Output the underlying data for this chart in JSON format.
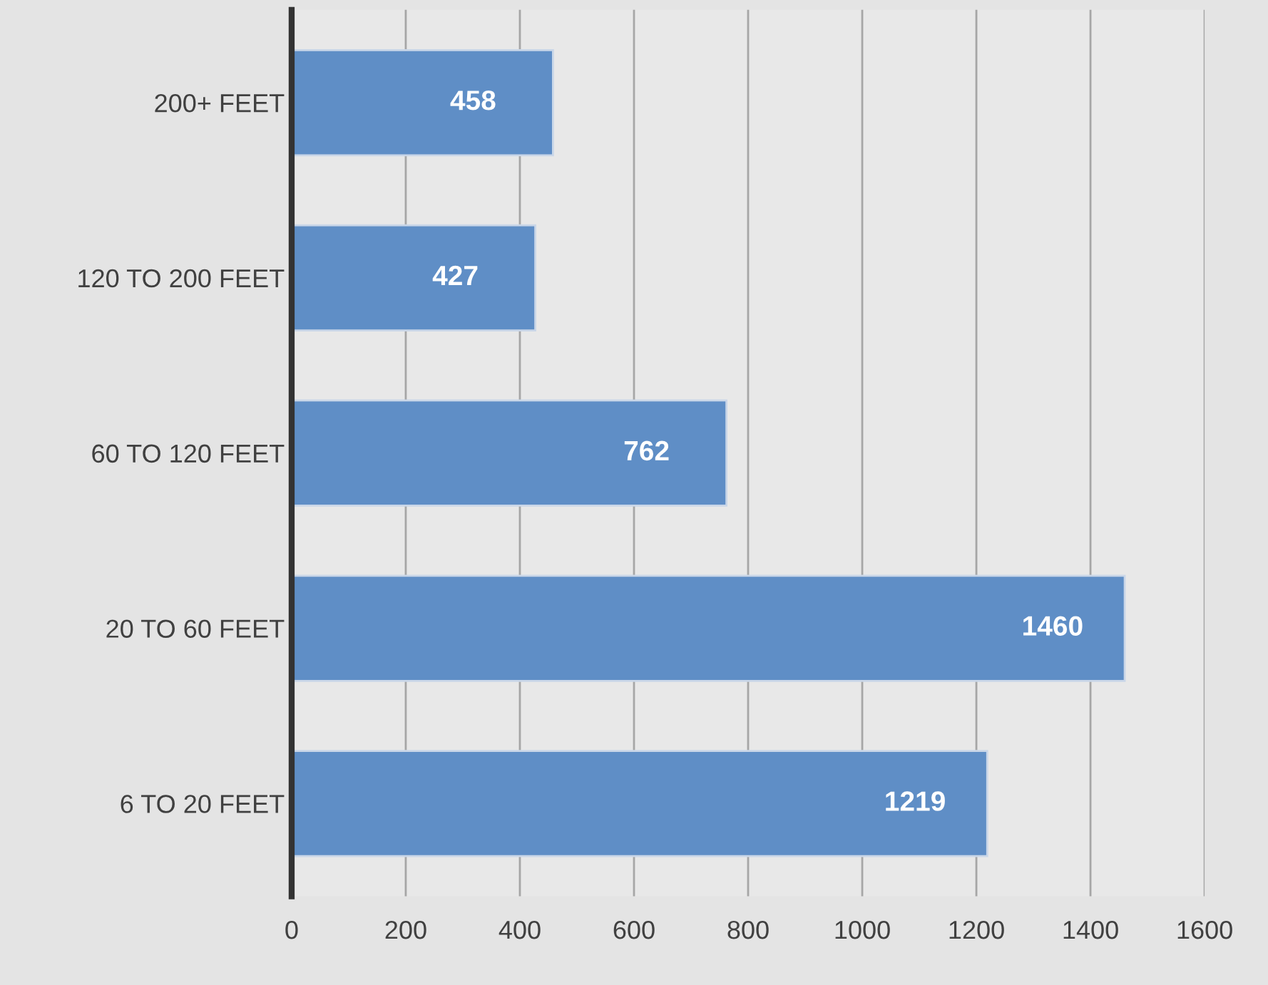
{
  "chart_data": {
    "type": "bar",
    "orientation": "horizontal",
    "categories": [
      "200+ FEET",
      "120 TO 200 FEET",
      "60 TO 120 FEET",
      "20 TO 60 FEET",
      "6 TO 20 FEET"
    ],
    "values": [
      458,
      427,
      762,
      1460,
      1219
    ],
    "color": "#5f8ec6",
    "xlim": [
      0,
      1600
    ],
    "xticks": [
      0,
      200,
      400,
      600,
      800,
      1000,
      1200,
      1400,
      1600
    ],
    "grid": "x",
    "data_labels": true,
    "legend": false
  }
}
